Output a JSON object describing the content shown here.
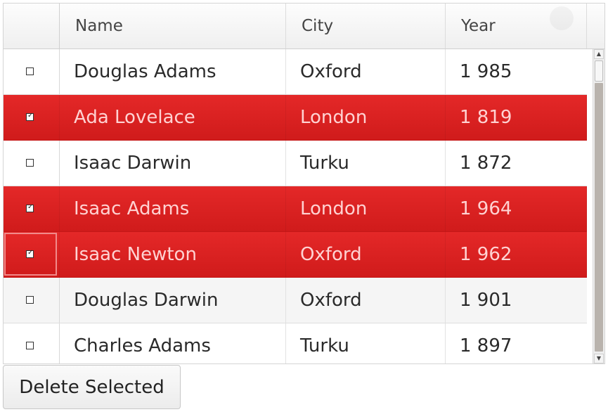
{
  "columns": {
    "select": "",
    "name": "Name",
    "city": "City",
    "year": "Year"
  },
  "rows": [
    {
      "selected": false,
      "name": "Douglas Adams",
      "city": "Oxford",
      "year": "1 985"
    },
    {
      "selected": true,
      "name": "Ada Lovelace",
      "city": "London",
      "year": "1 819"
    },
    {
      "selected": false,
      "name": "Isaac Darwin",
      "city": "Turku",
      "year": "1 872"
    },
    {
      "selected": true,
      "name": "Isaac Adams",
      "city": "London",
      "year": "1 964"
    },
    {
      "selected": true,
      "name": "Isaac Newton",
      "city": "Oxford",
      "year": "1 962",
      "focused": true
    },
    {
      "selected": false,
      "name": "Douglas Darwin",
      "city": "Oxford",
      "year": "1 901"
    },
    {
      "selected": false,
      "name": "Charles Adams",
      "city": "Turku",
      "year": "1 897"
    }
  ],
  "actions": {
    "delete_selected": "Delete Selected"
  },
  "colors": {
    "selection": "#e02222",
    "selected_text": "#ffd2d2",
    "header_bg": "#f3f3f3"
  }
}
